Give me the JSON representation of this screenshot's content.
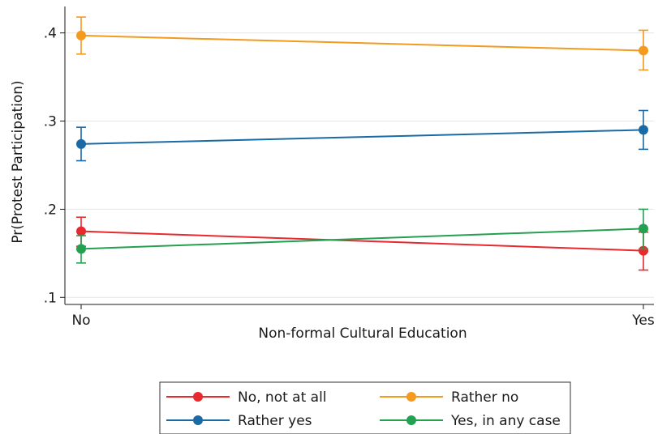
{
  "chart_data": {
    "type": "line",
    "title": "",
    "xlabel": "Non-formal Cultural Education",
    "ylabel": "Pr(Protest Participation)",
    "categories": [
      "No",
      "Yes"
    ],
    "y_ticks": [
      {
        "value": 0.1,
        "label": ".1"
      },
      {
        "value": 0.2,
        "label": ".2"
      },
      {
        "value": 0.3,
        "label": ".3"
      },
      {
        "value": 0.4,
        "label": ".4"
      }
    ],
    "ylim": [
      0.092,
      0.43
    ],
    "grid": true,
    "legend_placement": "bottom",
    "series": [
      {
        "name": "No, not at all",
        "color": "#e8292e",
        "values": [
          0.175,
          0.153
        ],
        "ci_low": [
          0.158,
          0.131
        ],
        "ci_high": [
          0.191,
          0.174
        ]
      },
      {
        "name": "Rather no",
        "color": "#f39a1f",
        "values": [
          0.397,
          0.38
        ],
        "ci_low": [
          0.376,
          0.358
        ],
        "ci_high": [
          0.418,
          0.403
        ]
      },
      {
        "name": "Rather yes",
        "color": "#1a6aa6",
        "values": [
          0.274,
          0.29
        ],
        "ci_low": [
          0.255,
          0.268
        ],
        "ci_high": [
          0.293,
          0.312
        ]
      },
      {
        "name": "Yes, in any case",
        "color": "#24a150",
        "values": [
          0.155,
          0.178
        ],
        "ci_low": [
          0.139,
          0.155
        ],
        "ci_high": [
          0.17,
          0.2
        ]
      }
    ]
  }
}
